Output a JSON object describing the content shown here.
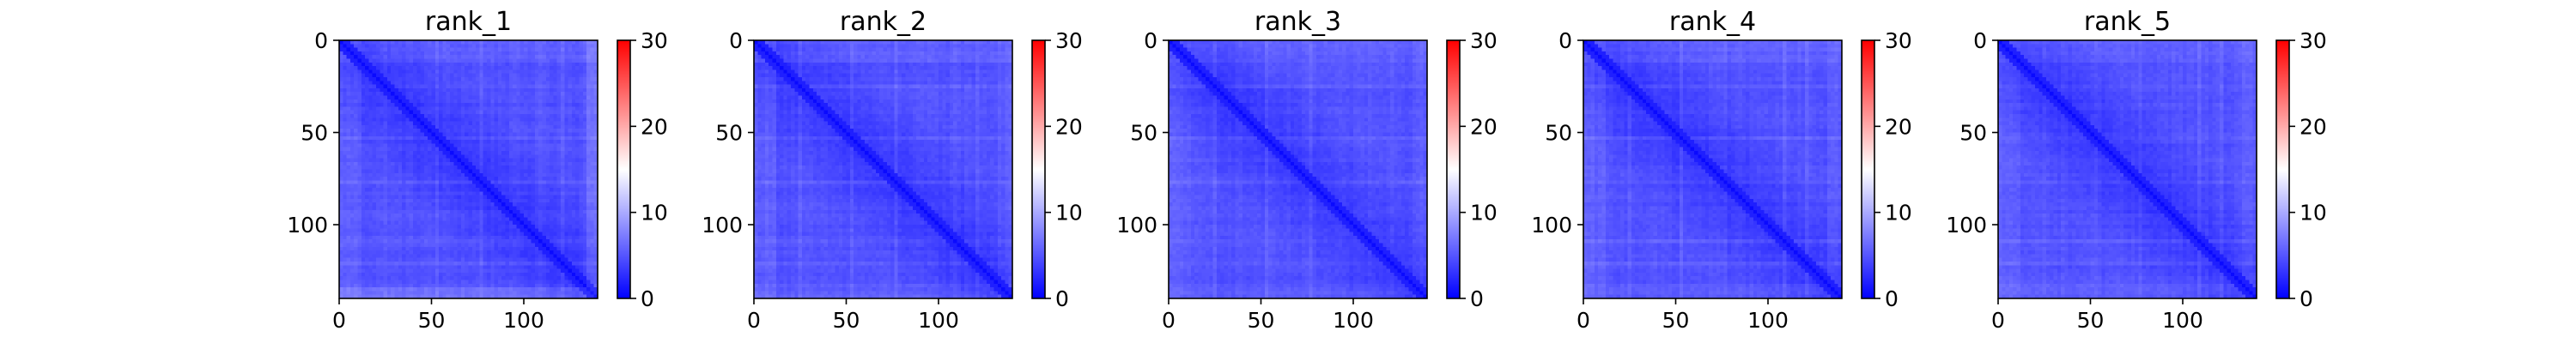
{
  "chart_data": [
    {
      "type": "heatmap",
      "title": "rank_1",
      "matrix_size": 140,
      "xlim": [
        0,
        140
      ],
      "ylim": [
        140,
        0
      ],
      "x_ticks": [
        0,
        50,
        100
      ],
      "y_ticks": [
        0,
        50,
        100
      ],
      "value_range": [
        0,
        30
      ],
      "colorbar_ticks": [
        0,
        10,
        20,
        30
      ],
      "colormap": "bwr",
      "observed_values": "mostly 1-5 (blue), diagonal lowest ~1, slightly higher values near matrix border"
    },
    {
      "type": "heatmap",
      "title": "rank_2",
      "matrix_size": 140,
      "xlim": [
        0,
        140
      ],
      "ylim": [
        140,
        0
      ],
      "x_ticks": [
        0,
        50,
        100
      ],
      "y_ticks": [
        0,
        50,
        100
      ],
      "value_range": [
        0,
        30
      ],
      "colorbar_ticks": [
        0,
        10,
        20,
        30
      ],
      "colormap": "bwr",
      "observed_values": "mostly 1-5 (blue), diagonal lowest ~1"
    },
    {
      "type": "heatmap",
      "title": "rank_3",
      "matrix_size": 140,
      "xlim": [
        0,
        140
      ],
      "ylim": [
        140,
        0
      ],
      "x_ticks": [
        0,
        50,
        100
      ],
      "y_ticks": [
        0,
        50,
        100
      ],
      "value_range": [
        0,
        30
      ],
      "colorbar_ticks": [
        0,
        10,
        20,
        30
      ],
      "colormap": "bwr",
      "observed_values": "mostly 1-5 (blue), diagonal lowest ~1"
    },
    {
      "type": "heatmap",
      "title": "rank_4",
      "matrix_size": 140,
      "xlim": [
        0,
        140
      ],
      "ylim": [
        140,
        0
      ],
      "x_ticks": [
        0,
        50,
        100
      ],
      "y_ticks": [
        0,
        50,
        100
      ],
      "value_range": [
        0,
        30
      ],
      "colorbar_ticks": [
        0,
        10,
        20,
        30
      ],
      "colormap": "bwr",
      "observed_values": "mostly 1-5 (blue), diagonal lowest ~1"
    },
    {
      "type": "heatmap",
      "title": "rank_5",
      "matrix_size": 140,
      "xlim": [
        0,
        140
      ],
      "ylim": [
        140,
        0
      ],
      "x_ticks": [
        0,
        50,
        100
      ],
      "y_ticks": [
        0,
        50,
        100
      ],
      "value_range": [
        0,
        30
      ],
      "colorbar_ticks": [
        0,
        10,
        20,
        30
      ],
      "colormap": "bwr",
      "observed_values": "mostly 1-5 (blue), diagonal lowest ~1"
    }
  ],
  "colors": {
    "low": "#0000ff",
    "mid": "#ffffff",
    "high": "#ff0000",
    "axis": "#000000",
    "background": "#ffffff"
  }
}
